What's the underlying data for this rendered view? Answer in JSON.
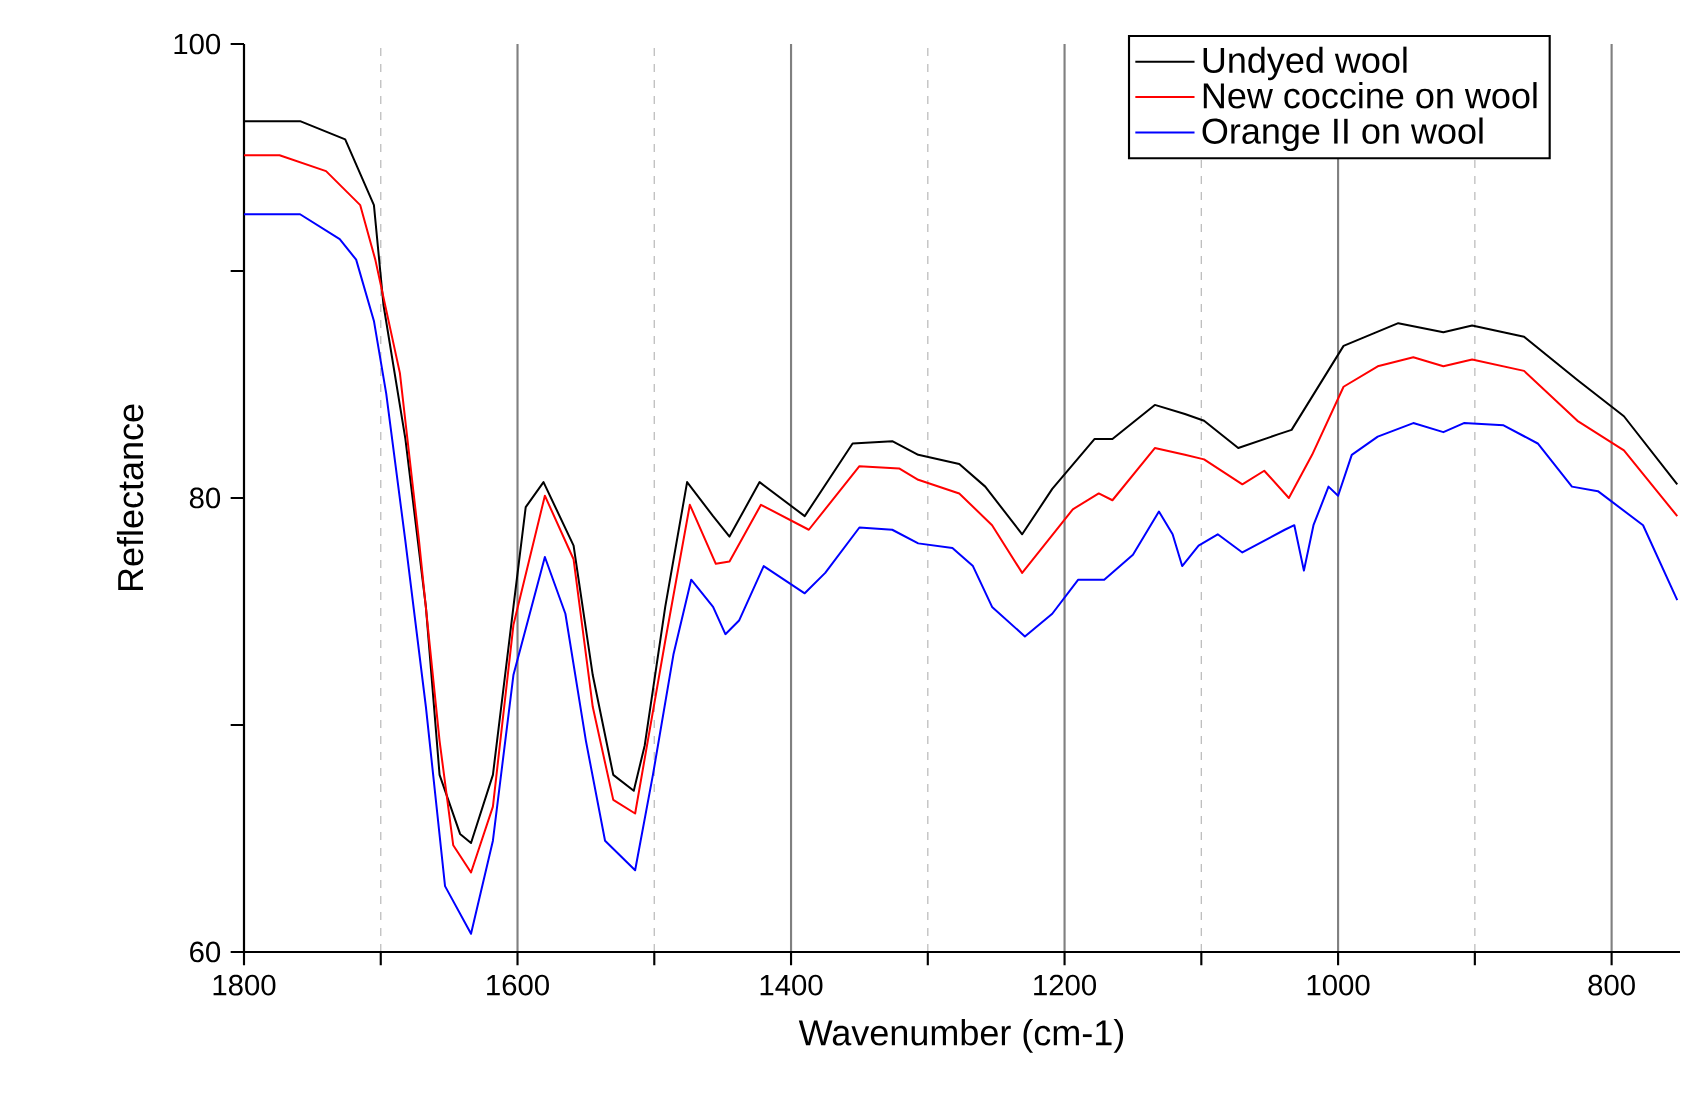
{
  "chart_data": {
    "type": "line",
    "xlabel": "Wavenumber (cm-1)",
    "ylabel": "Reflectance",
    "xlim": [
      1800,
      750
    ],
    "ylim": [
      60,
      100
    ],
    "xticks": [
      1800,
      {
        "value": 1700,
        "label": null
      },
      1600,
      {
        "value": 1500,
        "label": null
      },
      1400,
      {
        "value": 1300,
        "label": null
      },
      1200,
      {
        "value": 1100,
        "label": null
      },
      1000,
      {
        "value": 900,
        "label": null
      },
      800
    ],
    "yticks": [
      60,
      {
        "value": 70,
        "label": null
      },
      80,
      {
        "value": 90,
        "label": null
      },
      100
    ],
    "grid": "x",
    "legend": "top right",
    "marker": "none",
    "line_style": "solid",
    "series": [
      {
        "name": "Undyed wool",
        "color": "#000000",
        "x": [
          1800,
          1759,
          1726,
          1705,
          1698,
          1682,
          1667,
          1657,
          1642,
          1634,
          1618,
          1603,
          1594,
          1581,
          1559,
          1545,
          1530,
          1515,
          1507,
          1492,
          1476,
          1457,
          1445,
          1423,
          1390,
          1355,
          1326,
          1307,
          1277,
          1258,
          1231,
          1209,
          1178,
          1165,
          1134,
          1112,
          1098,
          1073,
          1044,
          1034,
          996,
          956,
          923,
          902,
          864,
          825,
          791,
          752
        ],
        "values": [
          96.6,
          96.6,
          95.8,
          92.9,
          88.5,
          82.6,
          75.2,
          67.8,
          65.2,
          64.8,
          67.8,
          75.2,
          79.6,
          80.7,
          77.9,
          72.2,
          67.8,
          67.1,
          69.1,
          75.2,
          80.7,
          79.2,
          78.3,
          80.7,
          79.2,
          82.4,
          82.5,
          81.9,
          81.5,
          80.5,
          78.4,
          80.4,
          82.6,
          82.6,
          84.1,
          83.7,
          83.4,
          82.2,
          82.8,
          83.0,
          86.7,
          87.7,
          87.3,
          87.6,
          87.1,
          85.2,
          83.6,
          80.6
        ]
      },
      {
        "name": "New coccine on wool",
        "color": "#ff0000",
        "x": [
          1800,
          1774,
          1740,
          1715,
          1704,
          1686,
          1672,
          1657,
          1647,
          1634,
          1618,
          1603,
          1580,
          1559,
          1545,
          1530,
          1514,
          1492,
          1474,
          1455,
          1445,
          1422,
          1387,
          1350,
          1321,
          1307,
          1277,
          1253,
          1231,
          1194,
          1175,
          1165,
          1134,
          1112,
          1098,
          1070,
          1054,
          1036,
          1019,
          996,
          971,
          945,
          923,
          902,
          864,
          825,
          791,
          752
        ],
        "values": [
          95.1,
          95.1,
          94.4,
          92.9,
          90.5,
          85.5,
          78.1,
          69.3,
          64.7,
          63.5,
          66.4,
          74.4,
          80.1,
          77.3,
          70.8,
          66.7,
          66.1,
          73.7,
          79.7,
          77.1,
          77.2,
          79.7,
          78.6,
          81.4,
          81.3,
          80.8,
          80.2,
          78.8,
          76.7,
          79.5,
          80.2,
          79.9,
          82.2,
          81.9,
          81.7,
          80.6,
          81.2,
          80.0,
          81.9,
          84.9,
          85.8,
          86.2,
          85.8,
          86.1,
          85.6,
          83.4,
          82.1,
          79.2
        ]
      },
      {
        "name": "Orange II on wool",
        "color": "#0000ff",
        "x": [
          1800,
          1759,
          1730,
          1718,
          1705,
          1696,
          1682,
          1667,
          1653,
          1634,
          1618,
          1603,
          1580,
          1565,
          1550,
          1536,
          1514,
          1501,
          1486,
          1473,
          1457,
          1448,
          1438,
          1420,
          1390,
          1375,
          1350,
          1326,
          1307,
          1282,
          1267,
          1253,
          1229,
          1209,
          1190,
          1171,
          1150,
          1131,
          1121,
          1114,
          1102,
          1088,
          1070,
          1039,
          1032,
          1025,
          1018,
          1007,
          1000,
          990,
          971,
          945,
          923,
          908,
          879,
          854,
          829,
          810,
          777,
          752
        ],
        "values": [
          92.5,
          92.5,
          91.4,
          90.5,
          87.8,
          84.6,
          78.1,
          70.8,
          62.9,
          60.8,
          64.9,
          72.2,
          77.4,
          74.9,
          69.3,
          64.9,
          63.6,
          67.8,
          73.1,
          76.4,
          75.2,
          74.0,
          74.6,
          77.0,
          75.8,
          76.7,
          78.7,
          78.6,
          78.0,
          77.8,
          77.0,
          75.2,
          73.9,
          74.9,
          76.4,
          76.4,
          77.5,
          79.4,
          78.4,
          77.0,
          77.9,
          78.4,
          77.6,
          78.6,
          78.8,
          76.8,
          78.8,
          80.5,
          80.1,
          81.9,
          82.7,
          83.3,
          82.9,
          83.3,
          83.2,
          82.4,
          80.5,
          80.3,
          78.8,
          75.5
        ]
      }
    ]
  }
}
